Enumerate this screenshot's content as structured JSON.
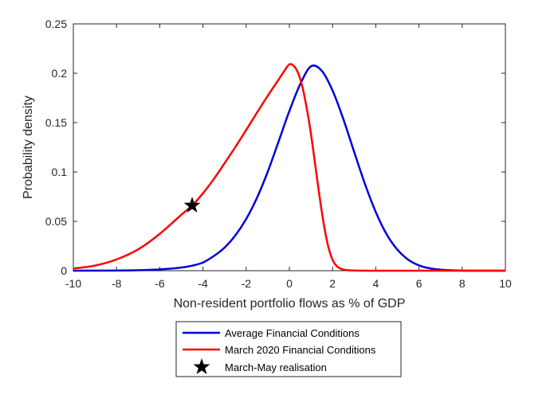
{
  "chart_data": {
    "type": "line",
    "title": "",
    "xlabel": "Non-resident portfolio flows as % of GDP",
    "ylabel": "Probability density",
    "xlim": [
      -10,
      10
    ],
    "ylim": [
      0,
      0.25
    ],
    "xticks": [
      -10,
      -8,
      -6,
      -4,
      -2,
      0,
      2,
      4,
      6,
      8,
      10
    ],
    "yticks": [
      0,
      0.05,
      0.1,
      0.15,
      0.2,
      0.25
    ],
    "ytick_labels": [
      "0",
      "0.05",
      "0.1",
      "0.15",
      "0.2",
      "0.25"
    ],
    "grid": false,
    "legend_position": "bottom-outside",
    "series": [
      {
        "name": "Average Financial Conditions",
        "color": "#0000dd",
        "x": [
          -10,
          -9,
          -8,
          -7,
          -6,
          -5,
          -4.5,
          -4,
          -3.5,
          -3,
          -2.5,
          -2,
          -1.5,
          -1,
          -0.5,
          0,
          0.5,
          1,
          1.5,
          2,
          2.5,
          3,
          3.5,
          4,
          4.5,
          5,
          5.5,
          6,
          6.5,
          7,
          8,
          9,
          10
        ],
        "y": [
          0,
          0.0001,
          0.0002,
          0.0005,
          0.0013,
          0.0032,
          0.0051,
          0.0083,
          0.0148,
          0.0234,
          0.0358,
          0.0523,
          0.0738,
          0.1003,
          0.1308,
          0.1617,
          0.1888,
          0.207,
          0.2025,
          0.1825,
          0.1535,
          0.1203,
          0.0878,
          0.0594,
          0.037,
          0.0213,
          0.0112,
          0.0054,
          0.0024,
          0.001,
          0.0001,
          0,
          0
        ],
        "marker": "none"
      },
      {
        "name": "March 2020 Financial Conditions",
        "color": "#ff0000",
        "x": [
          -10,
          -9,
          -8,
          -7,
          -6,
          -5,
          -4.5,
          -4,
          -3.5,
          -3,
          -2.5,
          -2,
          -1.5,
          -1,
          -0.5,
          -0.2,
          0,
          0.2,
          0.4,
          0.6,
          0.8,
          1,
          1.2,
          1.4,
          1.6,
          1.8,
          2,
          2.2,
          2.4,
          2.6,
          3,
          4,
          6,
          10
        ],
        "y": [
          0.0022,
          0.0052,
          0.0114,
          0.0216,
          0.0373,
          0.0567,
          0.066,
          0.0784,
          0.0928,
          0.1088,
          0.1253,
          0.1425,
          0.1601,
          0.1772,
          0.1935,
          0.2035,
          0.209,
          0.2075,
          0.2005,
          0.1865,
          0.165,
          0.1385,
          0.1068,
          0.0748,
          0.0462,
          0.0245,
          0.011,
          0.0045,
          0.0018,
          0.0007,
          0.0002,
          0,
          0,
          0
        ],
        "marker": "none"
      },
      {
        "name": "March-May realisation",
        "color": "#000000",
        "x": [
          -4.5
        ],
        "y": [
          0.066
        ],
        "marker": "star"
      }
    ]
  }
}
